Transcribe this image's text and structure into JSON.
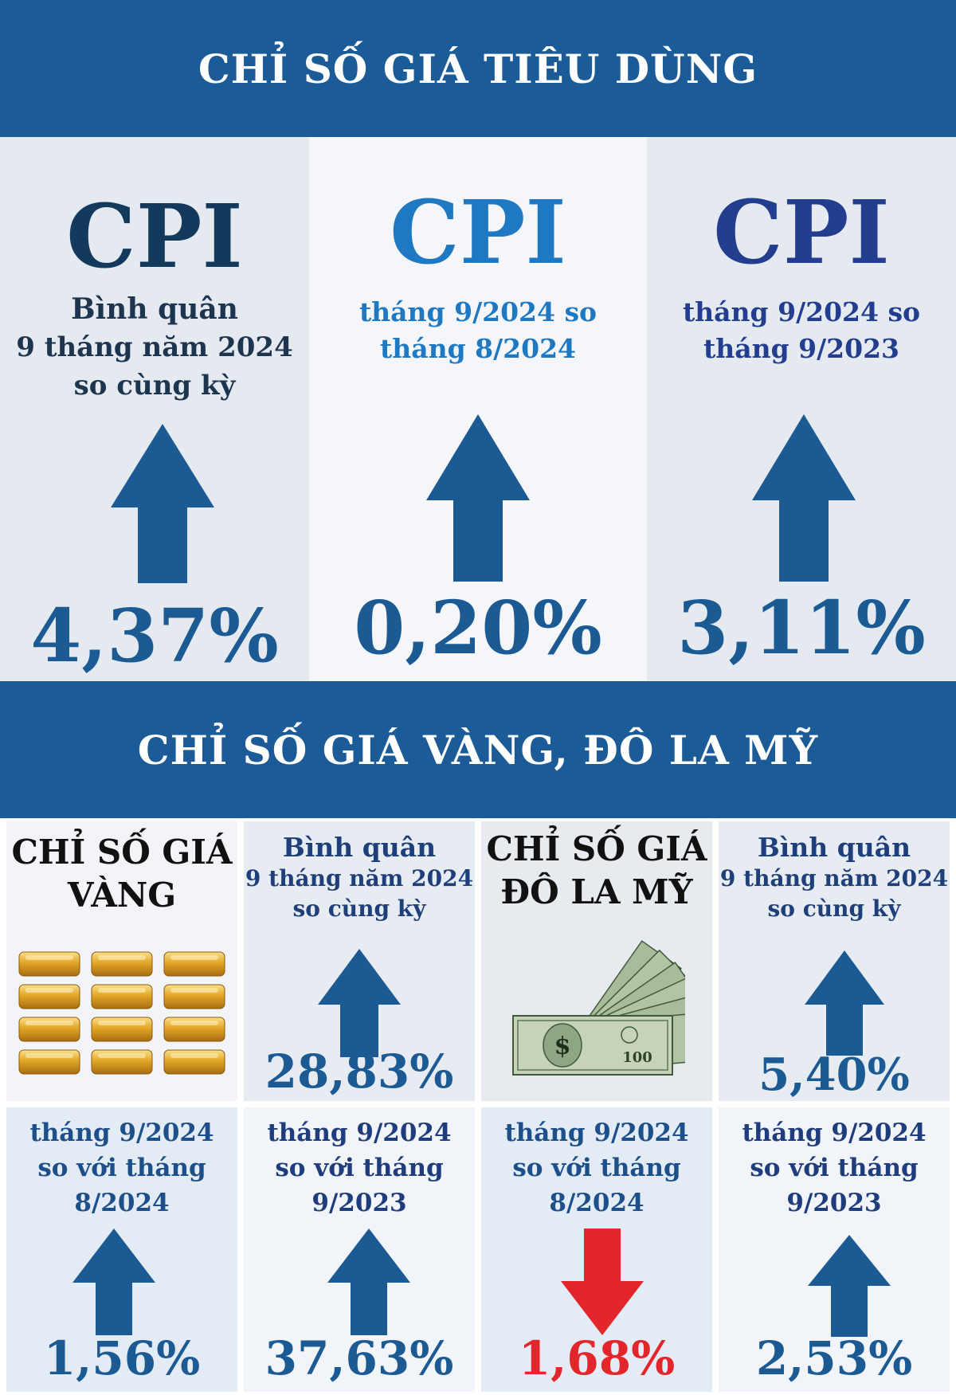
{
  "section1": {
    "title": "CHỈ SỐ GIÁ TIÊU DÙNG",
    "cards": [
      {
        "heading": "CPI",
        "line1": "Bình quân",
        "line2": "9 tháng năm 2024",
        "line3": "so cùng kỳ",
        "value": "4,37%",
        "direction": "up",
        "heading_color": "#133a5c"
      },
      {
        "heading": "CPI",
        "line1": "tháng 9/2024 so",
        "line2": "tháng 8/2024",
        "value": "0,20%",
        "direction": "up",
        "heading_color": "#1e78c2"
      },
      {
        "heading": "CPI",
        "line1": "tháng 9/2024 so",
        "line2": "tháng 9/2023",
        "value": "3,11%",
        "direction": "up",
        "heading_color": "#233d8f"
      }
    ]
  },
  "section2": {
    "title": "CHỈ SỐ GIÁ VÀNG, ĐÔ LA MỸ",
    "gold": {
      "title_line1": "CHỈ SỐ GIÁ",
      "title_line2": "VÀNG",
      "icon": "gold-bars-icon",
      "avg": {
        "line1": "Bình quân",
        "line2": "9 tháng năm 2024",
        "line3": "so cùng kỳ",
        "value": "28,83%",
        "direction": "up"
      },
      "mom": {
        "line1": "tháng 9/2024",
        "line2": "so với tháng",
        "line3": "8/2024",
        "value": "1,56%",
        "direction": "up"
      },
      "yoy": {
        "line1": "tháng 9/2024",
        "line2": "so với tháng",
        "line3": "9/2023",
        "value": "37,63%",
        "direction": "up"
      }
    },
    "usd": {
      "title_line1": "CHỈ SỐ GIÁ",
      "title_line2": "ĐÔ LA MỸ",
      "icon": "dollar-bills-icon",
      "avg": {
        "line1": "Bình quân",
        "line2": "9 tháng năm 2024",
        "line3": "so cùng kỳ",
        "value": "5,40%",
        "direction": "up"
      },
      "mom": {
        "line1": "tháng 9/2024",
        "line2": "so với tháng",
        "line3": "8/2024",
        "value": "1,68%",
        "direction": "down"
      },
      "yoy": {
        "line1": "tháng 9/2024",
        "line2": "so với tháng",
        "line3": "9/2023",
        "value": "2,53%",
        "direction": "up"
      }
    }
  },
  "colors": {
    "band": "#1b5b97",
    "arrow_up": "#1c5a93",
    "arrow_down": "#e2262b",
    "value": "#1c5a93",
    "value_down": "#e2262b"
  }
}
